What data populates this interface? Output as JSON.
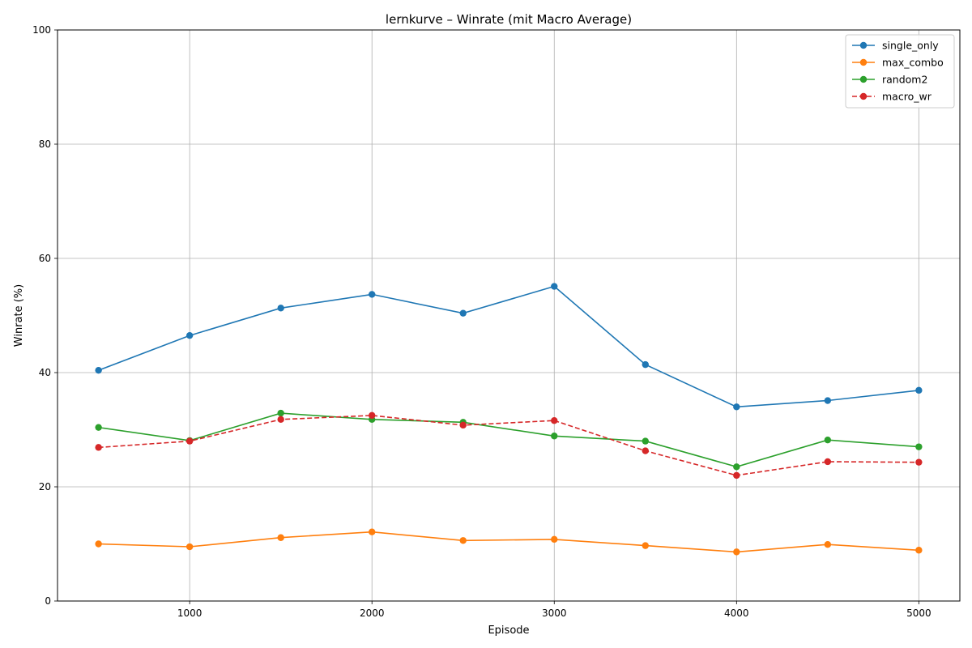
{
  "chart_data": {
    "type": "line",
    "title": "lernkurve – Winrate (mit Macro Average)",
    "xlabel": "Episode",
    "ylabel": "Winrate (%)",
    "xlim": [
      275,
      5225
    ],
    "ylim": [
      0,
      100
    ],
    "xticks": [
      1000,
      2000,
      3000,
      4000,
      5000
    ],
    "yticks": [
      0,
      20,
      40,
      60,
      80,
      100
    ],
    "grid": true,
    "legend_position": "top-right",
    "x": [
      500,
      1000,
      1500,
      2000,
      2500,
      3000,
      3500,
      4000,
      4500,
      5000
    ],
    "series": [
      {
        "name": "single_only",
        "color": "#1f77b4",
        "dashed": false,
        "values": [
          40.4,
          46.5,
          51.3,
          53.7,
          50.4,
          55.1,
          41.4,
          34.0,
          35.1,
          36.9
        ]
      },
      {
        "name": "max_combo",
        "color": "#ff7f0e",
        "dashed": false,
        "values": [
          10.0,
          9.5,
          11.1,
          12.1,
          10.6,
          10.8,
          9.7,
          8.6,
          9.9,
          8.9
        ]
      },
      {
        "name": "random2",
        "color": "#2ca02c",
        "dashed": false,
        "values": [
          30.4,
          28.1,
          32.9,
          31.8,
          31.3,
          28.9,
          28.0,
          23.5,
          28.2,
          27.0
        ]
      },
      {
        "name": "macro_wr",
        "color": "#d62728",
        "dashed": true,
        "values": [
          26.9,
          28.0,
          31.8,
          32.5,
          30.8,
          31.6,
          26.3,
          22.0,
          24.4,
          24.3
        ]
      }
    ]
  }
}
